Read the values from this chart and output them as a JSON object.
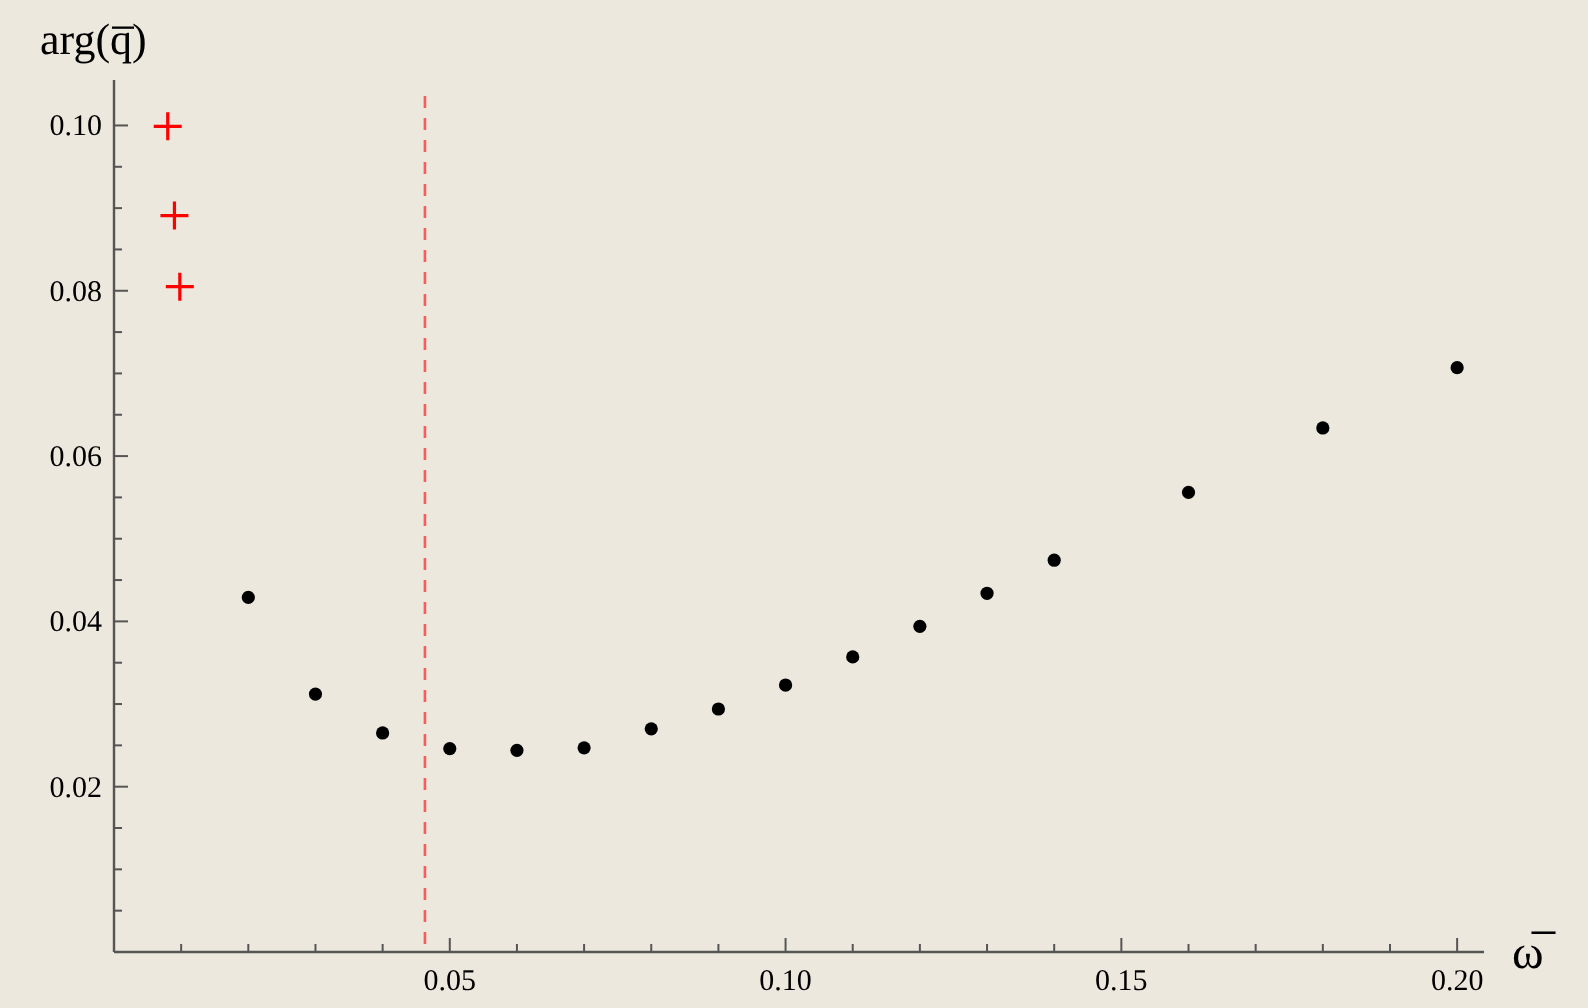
{
  "chart_data": {
    "type": "scatter",
    "xlabel": "ω̅",
    "ylabel": "arg(q̅)",
    "xlim": [
      0,
      0.204
    ],
    "ylim": [
      0,
      0.1055
    ],
    "xticks": [
      {
        "value": 0.01,
        "label": null
      },
      {
        "value": 0.02,
        "label": null
      },
      {
        "value": 0.03,
        "label": null
      },
      {
        "value": 0.04,
        "label": null
      },
      {
        "value": 0.05,
        "label": "0.05"
      },
      {
        "value": 0.06,
        "label": null
      },
      {
        "value": 0.07,
        "label": null
      },
      {
        "value": 0.08,
        "label": null
      },
      {
        "value": 0.09,
        "label": null
      },
      {
        "value": 0.1,
        "label": "0.10"
      },
      {
        "value": 0.11,
        "label": null
      },
      {
        "value": 0.12,
        "label": null
      },
      {
        "value": 0.13,
        "label": null
      },
      {
        "value": 0.14,
        "label": null
      },
      {
        "value": 0.15,
        "label": "0.15"
      },
      {
        "value": 0.16,
        "label": null
      },
      {
        "value": 0.17,
        "label": null
      },
      {
        "value": 0.18,
        "label": null
      },
      {
        "value": 0.19,
        "label": null
      },
      {
        "value": 0.2,
        "label": "0.20"
      }
    ],
    "yticks": [
      {
        "value": 0.005,
        "label": null
      },
      {
        "value": 0.01,
        "label": null
      },
      {
        "value": 0.015,
        "label": null
      },
      {
        "value": 0.02,
        "label": "0.02"
      },
      {
        "value": 0.025,
        "label": null
      },
      {
        "value": 0.03,
        "label": null
      },
      {
        "value": 0.035,
        "label": null
      },
      {
        "value": 0.04,
        "label": "0.04"
      },
      {
        "value": 0.045,
        "label": null
      },
      {
        "value": 0.05,
        "label": null
      },
      {
        "value": 0.055,
        "label": null
      },
      {
        "value": 0.06,
        "label": "0.06"
      },
      {
        "value": 0.065,
        "label": null
      },
      {
        "value": 0.07,
        "label": null
      },
      {
        "value": 0.075,
        "label": null
      },
      {
        "value": 0.08,
        "label": "0.08"
      },
      {
        "value": 0.085,
        "label": null
      },
      {
        "value": 0.09,
        "label": null
      },
      {
        "value": 0.095,
        "label": null
      },
      {
        "value": 0.1,
        "label": "0.10"
      }
    ],
    "grid": false,
    "series": [
      {
        "color": "#000000",
        "marker": "circle",
        "x": [
          0.02,
          0.03,
          0.04,
          0.05,
          0.06,
          0.07,
          0.08,
          0.09,
          0.1,
          0.11,
          0.12,
          0.13,
          0.14,
          0.16,
          0.18,
          0.2
        ],
        "values": [
          0.0429,
          0.0312,
          0.0265,
          0.0246,
          0.0244,
          0.0247,
          0.027,
          0.0294,
          0.0323,
          0.0357,
          0.0394,
          0.0434,
          0.0474,
          0.0556,
          0.0634,
          0.0707
        ]
      },
      {
        "color": "#ff0000",
        "marker": "cross",
        "x": [
          0.008,
          0.009,
          0.0098
        ],
        "values": [
          0.0999,
          0.0891,
          0.0805
        ]
      }
    ],
    "ref_lines": [
      {
        "axis": "x",
        "value": 0.0463,
        "color": "#ff5a5a",
        "line_style": "dashed"
      }
    ]
  }
}
